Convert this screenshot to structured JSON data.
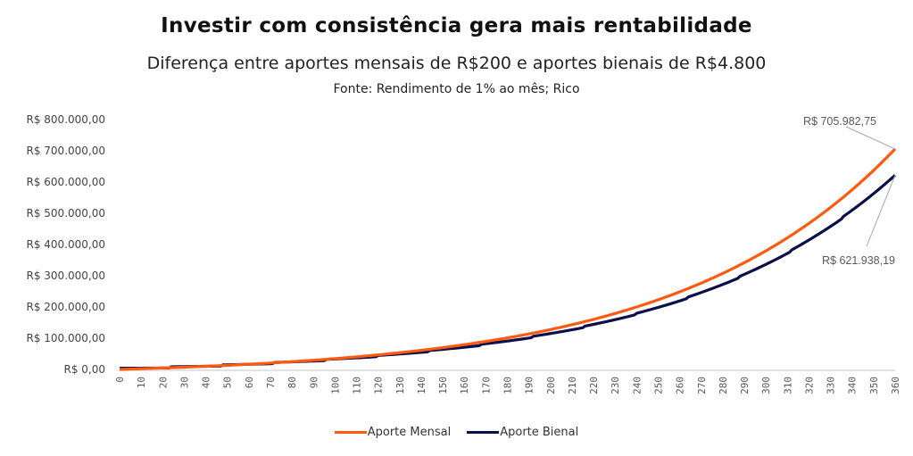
{
  "title": "Investir com consistência gera mais rentabilidade",
  "subtitle": "Diferença entre aportes mensais de R$200 e aportes bienais de R$4.800",
  "source": "Fonte: Rendimento de 1% ao mês; Rico",
  "chart_data": {
    "type": "line",
    "title": "Investir com consistência gera mais rentabilidade",
    "subtitle": "Diferença entre aportes mensais de R$200 e aportes bienais de R$4.800",
    "xlabel": "",
    "ylabel": "",
    "xlim": [
      0,
      360
    ],
    "ylim": [
      0,
      800000
    ],
    "x_ticks": [
      "0",
      "10",
      "20",
      "30",
      "40",
      "50",
      "60",
      "70",
      "80",
      "90",
      "100",
      "110",
      "120",
      "130",
      "140",
      "150",
      "160",
      "170",
      "180",
      "190",
      "200",
      "210",
      "220",
      "230",
      "240",
      "250",
      "260",
      "270",
      "280",
      "290",
      "300",
      "310",
      "320",
      "330",
      "340",
      "350",
      "360"
    ],
    "y_ticks": [
      {
        "value": 0,
        "label": "R$ 0,00"
      },
      {
        "value": 100000,
        "label": "R$ 100.000,00"
      },
      {
        "value": 200000,
        "label": "R$ 200.000,00"
      },
      {
        "value": 300000,
        "label": "R$ 300.000,00"
      },
      {
        "value": 400000,
        "label": "R$ 400.000,00"
      },
      {
        "value": 500000,
        "label": "R$ 500.000,00"
      },
      {
        "value": 600000,
        "label": "R$ 600.000,00"
      },
      {
        "value": 700000,
        "label": "R$ 700.000,00"
      },
      {
        "value": 800000,
        "label": "R$ 800.000,00"
      }
    ],
    "grid": false,
    "legend_position": "bottom",
    "series": [
      {
        "name": "Aporte Mensal",
        "color": "#FF5A0F",
        "model": "monthly",
        "contribution": 200,
        "period_months": 1,
        "rate": 0.01,
        "final_value": 705982.75,
        "final_label": "R$ 705.982,75"
      },
      {
        "name": "Aporte Bienal",
        "color": "#0B0F4A",
        "model": "biennial",
        "contribution": 4800,
        "period_months": 24,
        "rate": 0.01,
        "final_value": 621938.19,
        "final_label": "R$ 621.938,19"
      }
    ],
    "annotations": [
      {
        "series": "Aporte Mensal",
        "x": 360,
        "text": "R$ 705.982,75",
        "placement": "above-left"
      },
      {
        "series": "Aporte Bienal",
        "x": 360,
        "text": "R$ 621.938,19",
        "placement": "below-left"
      }
    ]
  }
}
